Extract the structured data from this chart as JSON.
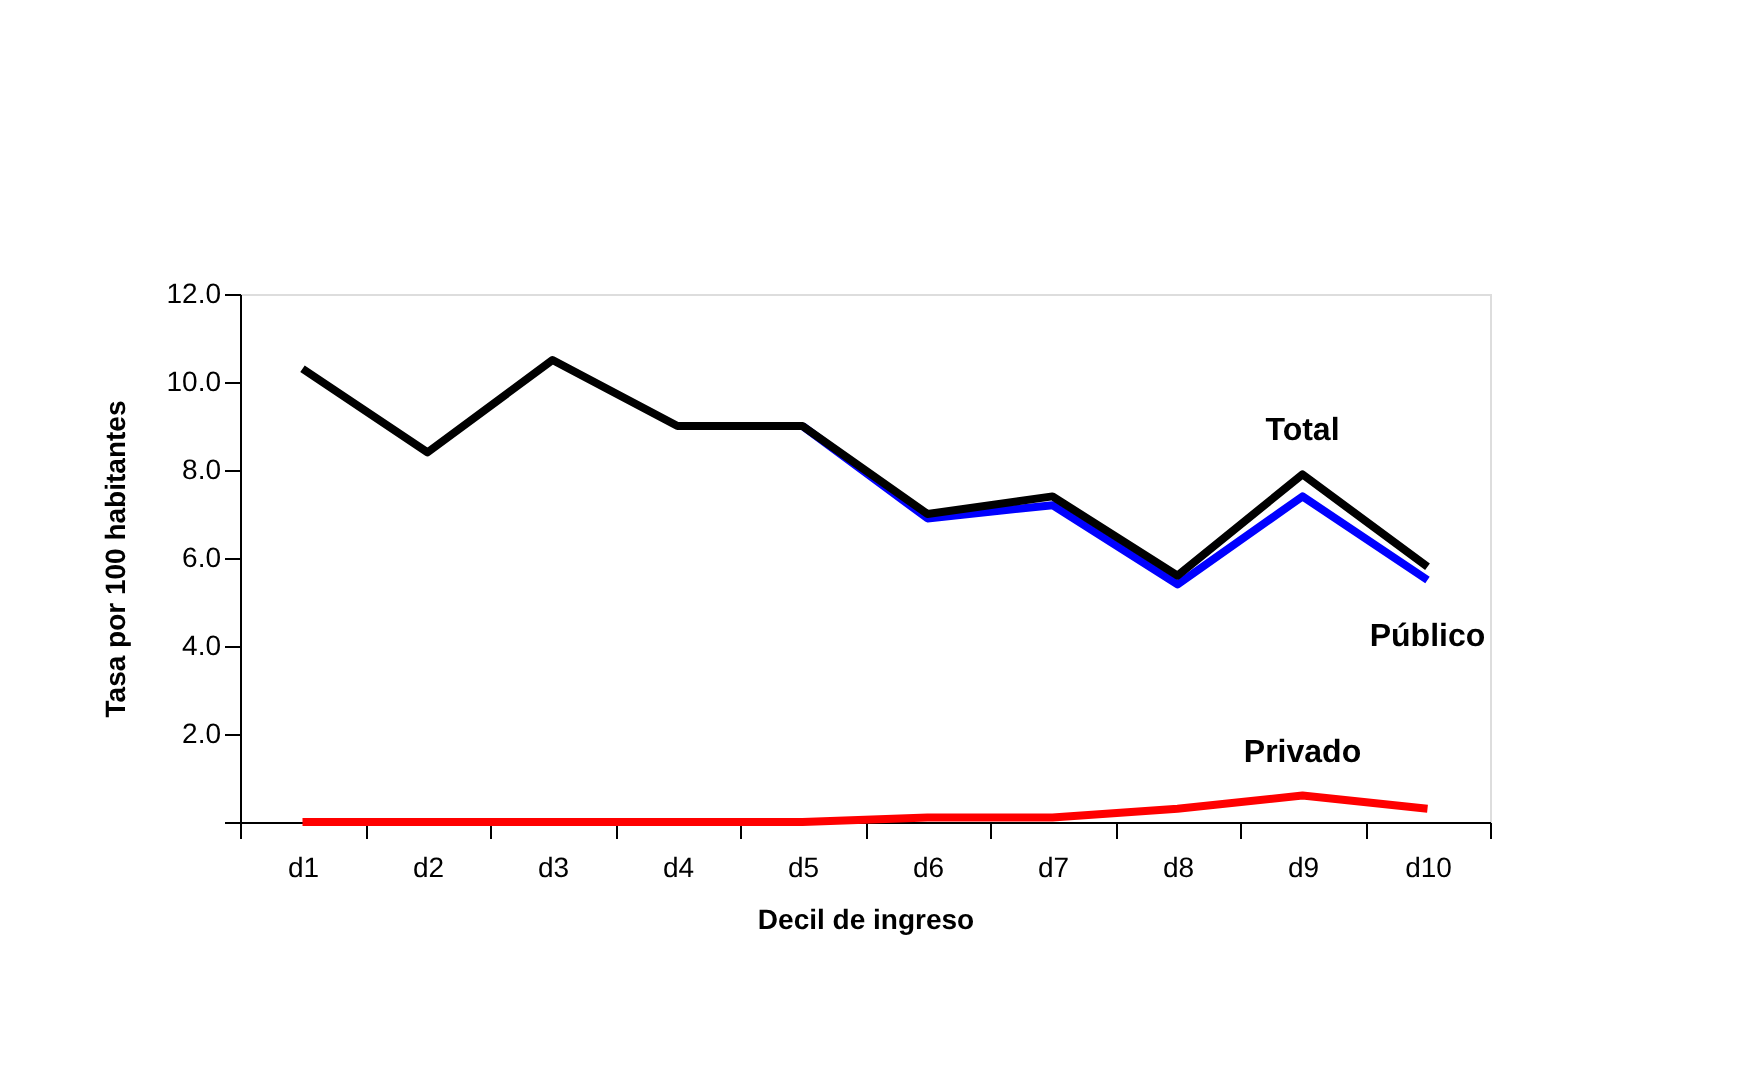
{
  "chart_data": {
    "type": "line",
    "xlabel": "Decil de ingreso",
    "ylabel": "Tasa por 100 habitantes",
    "categories": [
      "d1",
      "d2",
      "d3",
      "d4",
      "d5",
      "d6",
      "d7",
      "d8",
      "d9",
      "d10"
    ],
    "series": [
      {
        "name": "Público",
        "color": "#0000ff",
        "values": [
          null,
          null,
          null,
          null,
          9.0,
          6.9,
          7.2,
          5.4,
          7.4,
          5.5
        ]
      },
      {
        "name": "Total",
        "color": "#000000",
        "values": [
          10.3,
          8.4,
          10.5,
          9.0,
          9.0,
          7.0,
          7.4,
          5.6,
          7.9,
          5.8
        ]
      },
      {
        "name": "Privado",
        "color": "#ff0000",
        "values": [
          0.0,
          0.0,
          0.0,
          0.0,
          0.0,
          0.1,
          0.1,
          0.3,
          0.6,
          0.3
        ]
      }
    ],
    "ylim": [
      0,
      12
    ],
    "yticks": [
      {
        "value": 0,
        "label": null
      },
      {
        "value": 2,
        "label": "2.0"
      },
      {
        "value": 4,
        "label": "4.0"
      },
      {
        "value": 6,
        "label": "6.0"
      },
      {
        "value": 8,
        "label": "8.0"
      },
      {
        "value": 10,
        "label": "10.0"
      },
      {
        "value": 12,
        "label": "12.0"
      }
    ],
    "grid": false,
    "legend": false,
    "marker": "none",
    "line_style": "solid"
  }
}
